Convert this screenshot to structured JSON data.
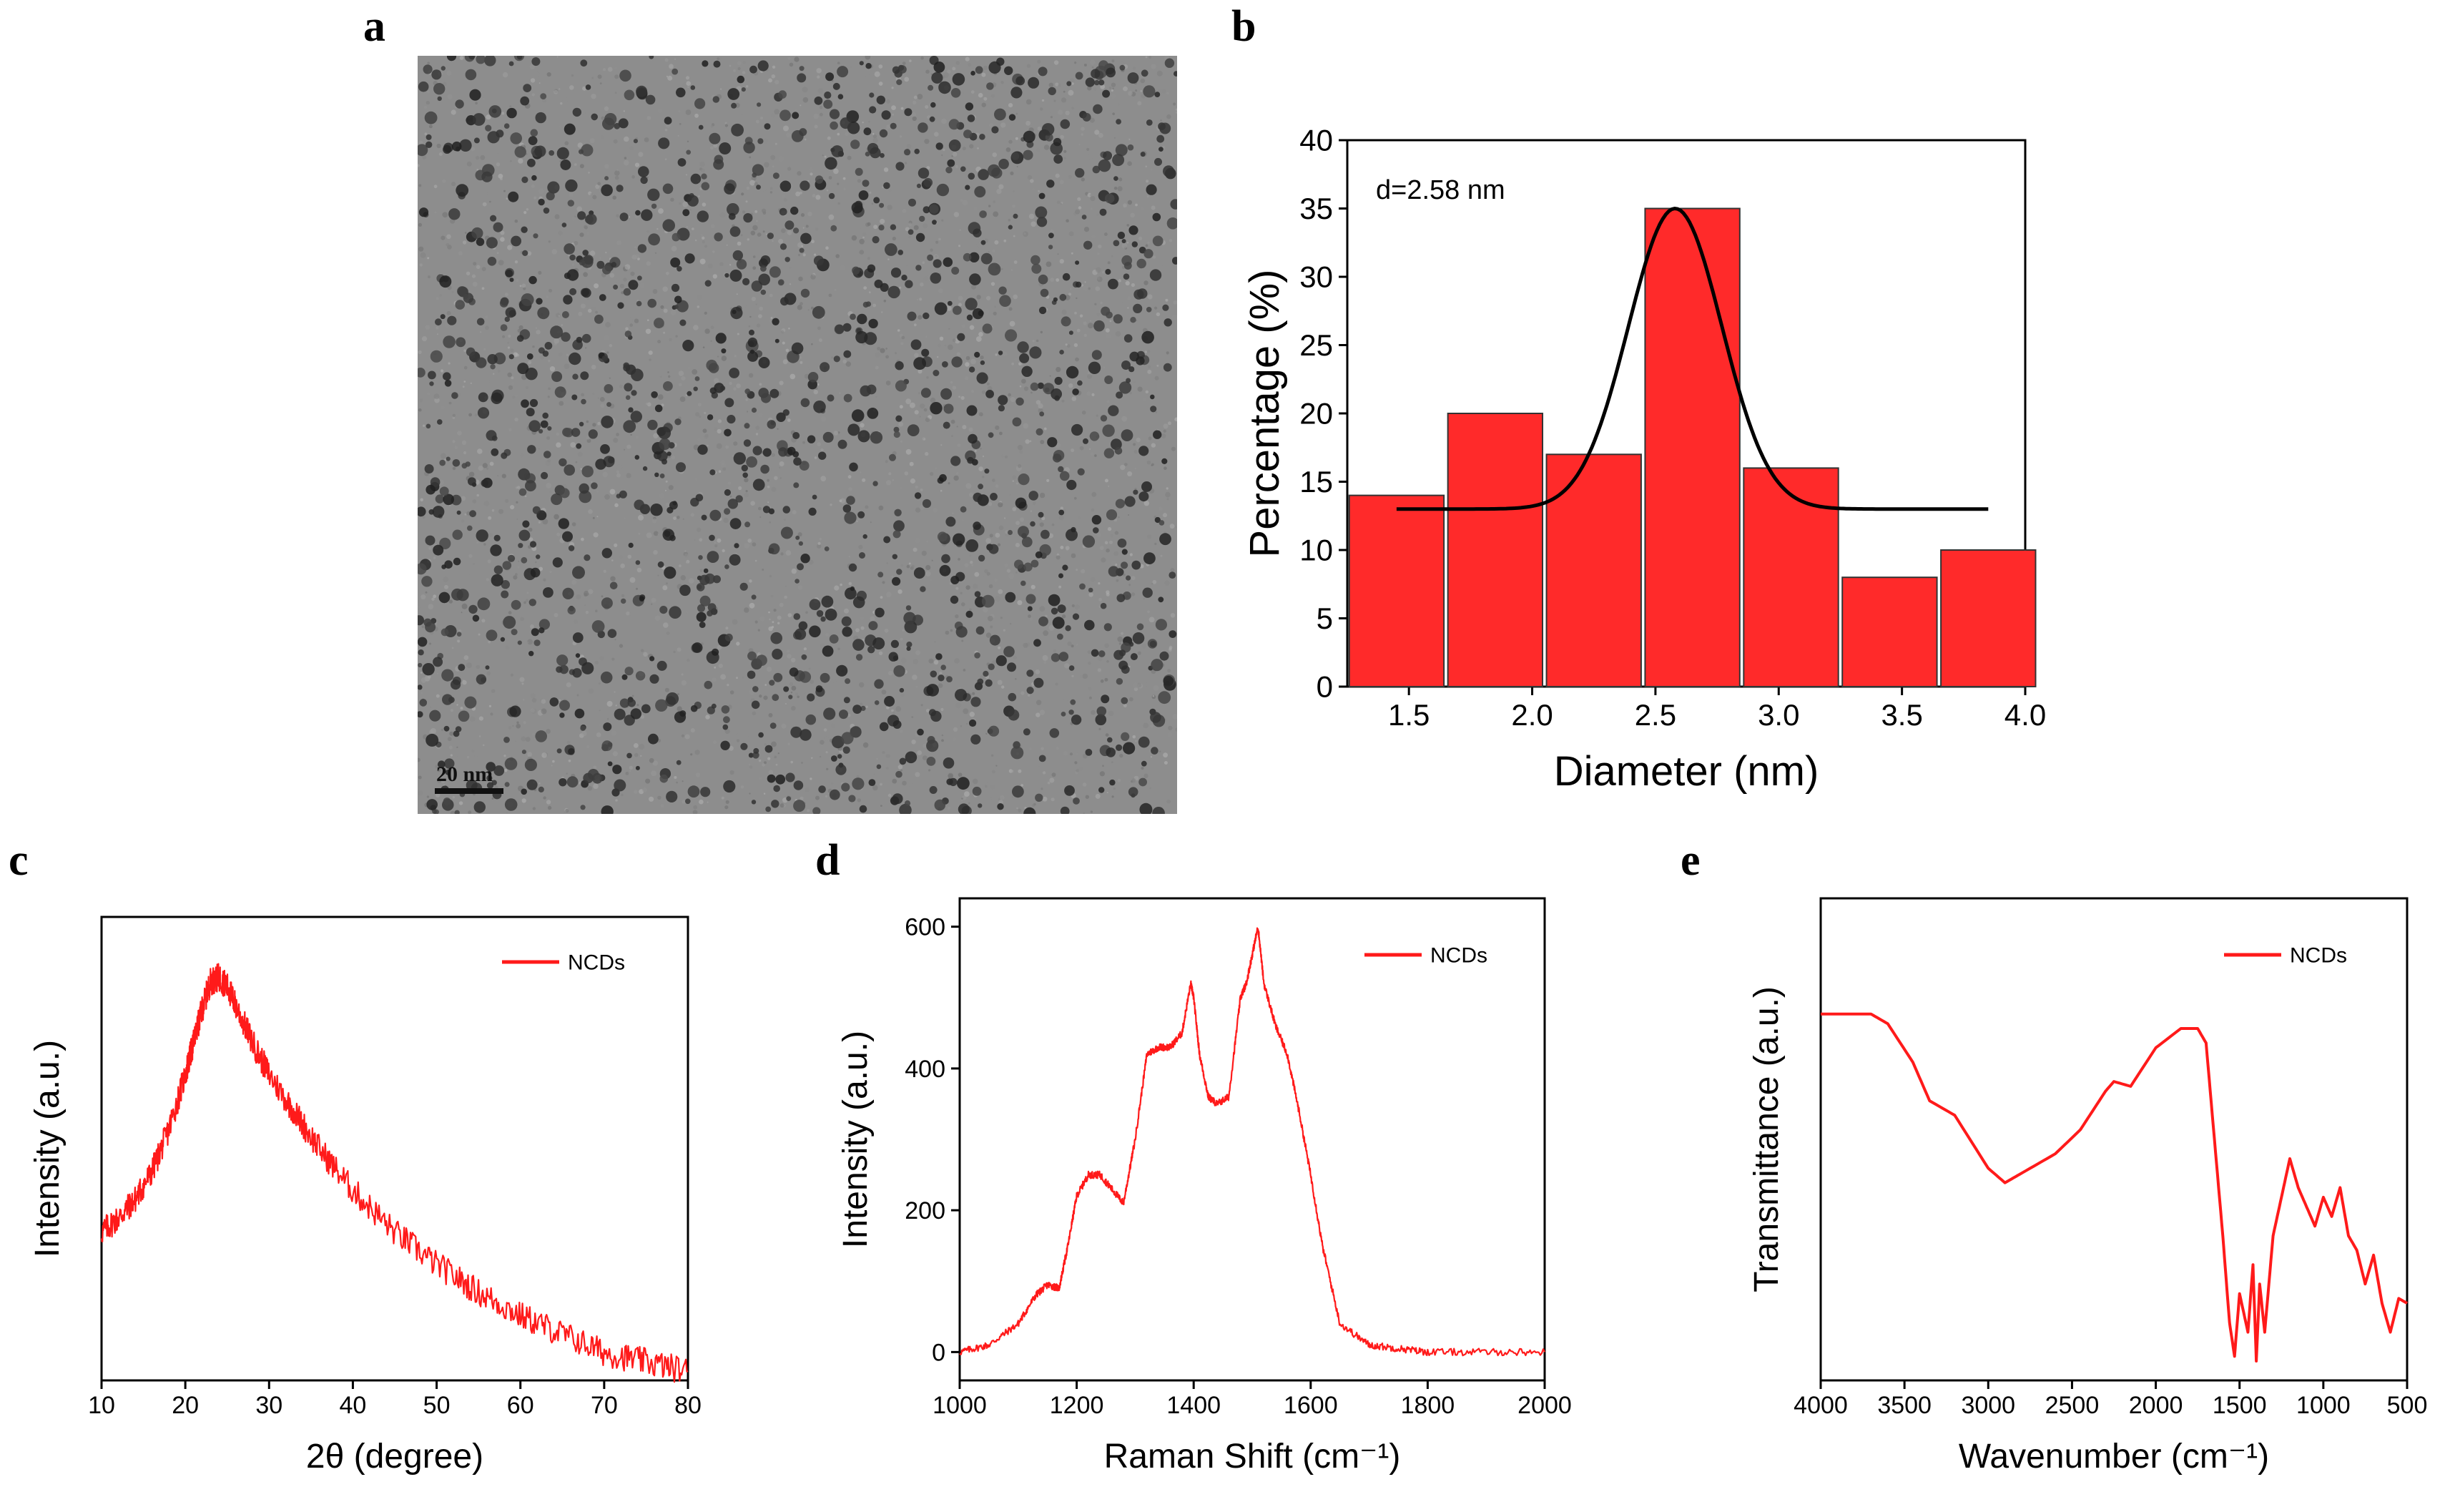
{
  "panels": {
    "a": {
      "letter": "a",
      "scale_bar_label": "20 nm"
    },
    "b": {
      "letter": "b"
    },
    "c": {
      "letter": "c"
    },
    "d": {
      "letter": "d"
    },
    "e": {
      "letter": "e"
    }
  },
  "colors": {
    "bar_fill": "#ff2a2a",
    "line_red": "#ff1a1a",
    "fit_black": "#000000"
  },
  "chart_data": [
    {
      "id": "b",
      "type": "bar",
      "xlabel": "Diameter (nm)",
      "ylabel": "Percentage (%)",
      "annotation": "d=2.58 nm",
      "xlim": [
        1.25,
        4.0
      ],
      "ylim": [
        0,
        40
      ],
      "xticks": [
        "1.5",
        "2.0",
        "2.5",
        "3.0",
        "3.5",
        "4.0"
      ],
      "yticks": [
        "0",
        "5",
        "10",
        "15",
        "20",
        "25",
        "30",
        "35",
        "40"
      ],
      "bins": [
        1.45,
        1.85,
        2.25,
        2.65,
        3.05,
        3.45,
        3.85
      ],
      "values": [
        14,
        20,
        17,
        35,
        16,
        8,
        10
      ],
      "fit": {
        "type": "gaussian",
        "baseline": 13,
        "amplitude": 22,
        "center": 2.58,
        "sigma": 0.19,
        "x_from": 1.45,
        "x_to": 3.85
      }
    },
    {
      "id": "c",
      "type": "line",
      "xlabel": "2θ (degree)",
      "ylabel": "Intensity (a.u.)",
      "legend": "NCDs",
      "xlim": [
        10,
        80
      ],
      "ylim": [
        0,
        100
      ],
      "xticks": [
        "10",
        "20",
        "30",
        "40",
        "50",
        "60",
        "70",
        "80"
      ],
      "yticks": [],
      "x": [
        10,
        12,
        14,
        16,
        18,
        20,
        21,
        22,
        23,
        24,
        25,
        26,
        28,
        30,
        33,
        36,
        40,
        45,
        50,
        55,
        60,
        65,
        70,
        75,
        80
      ],
      "y": [
        32,
        35,
        39,
        45,
        54,
        66,
        73,
        80,
        86,
        87,
        85,
        81,
        73,
        66,
        58,
        50,
        41,
        32,
        25,
        19,
        14,
        10,
        6,
        4,
        2
      ]
    },
    {
      "id": "d",
      "type": "line",
      "xlabel": "Raman Shift (cm⁻¹)",
      "ylabel": "Intensity (a.u.)",
      "legend": "NCDs",
      "xlim": [
        1000,
        2000
      ],
      "ylim": [
        -40,
        640
      ],
      "xticks": [
        "1000",
        "1200",
        "1400",
        "1600",
        "1800",
        "2000"
      ],
      "yticks": [
        "0",
        "200",
        "400",
        "600"
      ],
      "x": [
        1000,
        1050,
        1100,
        1130,
        1150,
        1170,
        1185,
        1200,
        1220,
        1240,
        1260,
        1280,
        1300,
        1320,
        1340,
        1360,
        1380,
        1395,
        1400,
        1410,
        1425,
        1440,
        1460,
        1480,
        1490,
        1500,
        1510,
        1520,
        1540,
        1560,
        1580,
        1600,
        1620,
        1650,
        1700,
        1750,
        1800,
        1900,
        2000
      ],
      "y": [
        0,
        10,
        40,
        80,
        95,
        90,
        150,
        220,
        250,
        250,
        230,
        210,
        300,
        420,
        430,
        430,
        450,
        520,
        500,
        420,
        360,
        350,
        360,
        500,
        520,
        560,
        600,
        520,
        460,
        420,
        340,
        250,
        150,
        40,
        10,
        5,
        0,
        0,
        0
      ]
    },
    {
      "id": "e",
      "type": "line",
      "xlabel": "Wavenumber (cm⁻¹)",
      "ylabel": "Transmittance (a.u.)",
      "legend": "NCDs",
      "xlim": [
        4000,
        500
      ],
      "ylim": [
        0,
        100
      ],
      "xticks": [
        "4000",
        "3500",
        "3000",
        "2500",
        "2000",
        "1500",
        "1000",
        "500"
      ],
      "yticks": [],
      "x": [
        4000,
        3700,
        3600,
        3450,
        3350,
        3200,
        3000,
        2900,
        2800,
        2600,
        2450,
        2300,
        2250,
        2150,
        2000,
        1850,
        1750,
        1700,
        1650,
        1600,
        1560,
        1530,
        1500,
        1450,
        1420,
        1400,
        1380,
        1350,
        1300,
        1250,
        1200,
        1150,
        1100,
        1050,
        1000,
        950,
        900,
        850,
        800,
        750,
        700,
        650,
        600,
        550,
        500
      ],
      "y": [
        76,
        76,
        74,
        66,
        58,
        55,
        44,
        41,
        43,
        47,
        52,
        60,
        62,
        61,
        69,
        73,
        73,
        70,
        50,
        30,
        12,
        5,
        18,
        10,
        24,
        4,
        20,
        10,
        30,
        38,
        46,
        40,
        36,
        32,
        38,
        34,
        40,
        30,
        27,
        20,
        26,
        16,
        10,
        17,
        16
      ]
    }
  ]
}
